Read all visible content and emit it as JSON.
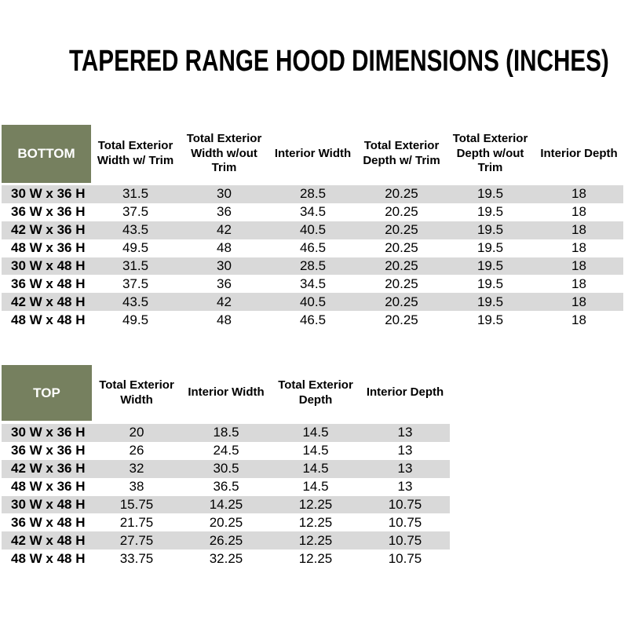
{
  "title": "TAPERED RANGE HOOD DIMENSIONS (INCHES)",
  "colors": {
    "header_green": "#76805F",
    "row_stripe_gray": "#D9D9D9",
    "text": "#000000",
    "corner_label_text": "#FFFFFF"
  },
  "bottom_table": {
    "corner_label": "BOTTOM",
    "headers": [
      "Total Exterior Width w/ Trim",
      "Total Exterior Width w/out Trim",
      "Interior Width",
      "Total Exterior Depth w/ Trim",
      "Total Exterior Depth w/out Trim",
      "Interior Depth"
    ],
    "rows": [
      {
        "label": "30 W x 36 H",
        "values": [
          "31.5",
          "30",
          "28.5",
          "20.25",
          "19.5",
          "18"
        ]
      },
      {
        "label": "36 W x 36 H",
        "values": [
          "37.5",
          "36",
          "34.5",
          "20.25",
          "19.5",
          "18"
        ]
      },
      {
        "label": "42 W x 36 H",
        "values": [
          "43.5",
          "42",
          "40.5",
          "20.25",
          "19.5",
          "18"
        ]
      },
      {
        "label": "48 W x 36 H",
        "values": [
          "49.5",
          "48",
          "46.5",
          "20.25",
          "19.5",
          "18"
        ]
      },
      {
        "label": "30 W x 48 H",
        "values": [
          "31.5",
          "30",
          "28.5",
          "20.25",
          "19.5",
          "18"
        ]
      },
      {
        "label": "36 W x 48 H",
        "values": [
          "37.5",
          "36",
          "34.5",
          "20.25",
          "19.5",
          "18"
        ]
      },
      {
        "label": "42 W x 48 H",
        "values": [
          "43.5",
          "42",
          "40.5",
          "20.25",
          "19.5",
          "18"
        ]
      },
      {
        "label": "48 W x 48 H",
        "values": [
          "49.5",
          "48",
          "46.5",
          "20.25",
          "19.5",
          "18"
        ]
      }
    ]
  },
  "top_table": {
    "corner_label": "TOP",
    "headers": [
      "Total Exterior Width",
      "Interior Width",
      "Total Exterior Depth",
      "Interior Depth"
    ],
    "rows": [
      {
        "label": "30 W x 36 H",
        "values": [
          "20",
          "18.5",
          "14.5",
          "13"
        ]
      },
      {
        "label": "36 W x 36 H",
        "values": [
          "26",
          "24.5",
          "14.5",
          "13"
        ]
      },
      {
        "label": "42 W x 36 H",
        "values": [
          "32",
          "30.5",
          "14.5",
          "13"
        ]
      },
      {
        "label": "48 W x 36 H",
        "values": [
          "38",
          "36.5",
          "14.5",
          "13"
        ]
      },
      {
        "label": "30 W x 48 H",
        "values": [
          "15.75",
          "14.25",
          "12.25",
          "10.75"
        ]
      },
      {
        "label": "36 W x 48 H",
        "values": [
          "21.75",
          "20.25",
          "12.25",
          "10.75"
        ]
      },
      {
        "label": "42 W x 48 H",
        "values": [
          "27.75",
          "26.25",
          "12.25",
          "10.75"
        ]
      },
      {
        "label": "48 W x 48 H",
        "values": [
          "33.75",
          "32.25",
          "12.25",
          "10.75"
        ]
      }
    ]
  }
}
